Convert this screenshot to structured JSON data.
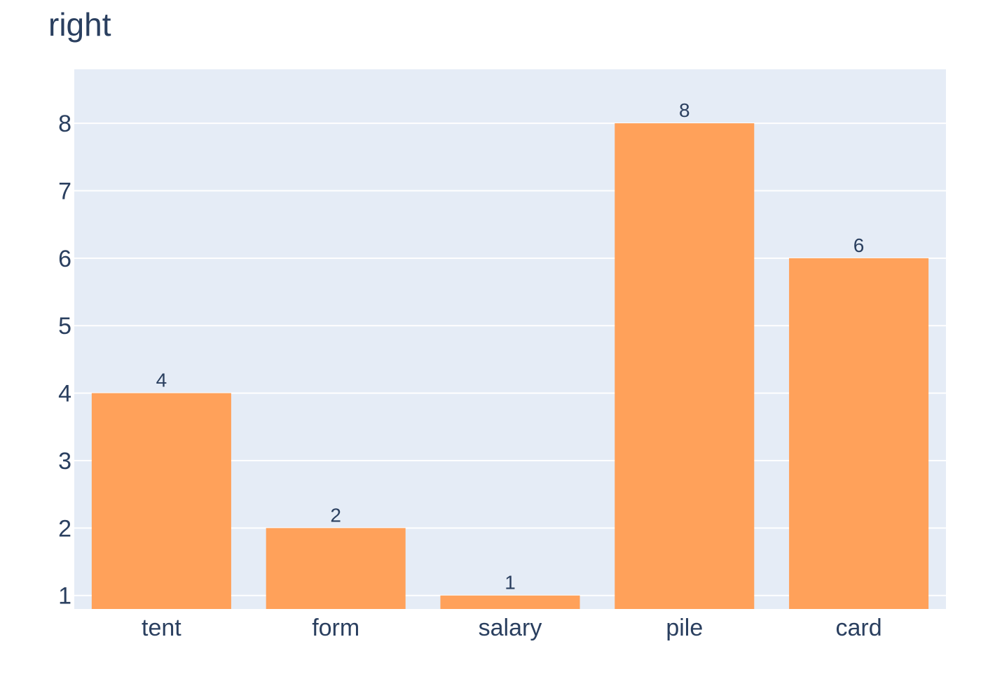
{
  "chart_data": {
    "type": "bar",
    "title": "right",
    "categories": [
      "tent",
      "form",
      "salary",
      "pile",
      "card"
    ],
    "values": [
      4,
      2,
      1,
      8,
      6
    ],
    "ylim": [
      0.8,
      8.8
    ],
    "yticks": [
      1,
      2,
      3,
      4,
      5,
      6,
      7,
      8
    ],
    "xlabel": "",
    "ylabel": "",
    "grid": true,
    "colors": {
      "bar": "#ffa15a",
      "plot_bg": "#e5ecf6",
      "grid": "#ffffff",
      "text": "#2a3f5f"
    }
  }
}
